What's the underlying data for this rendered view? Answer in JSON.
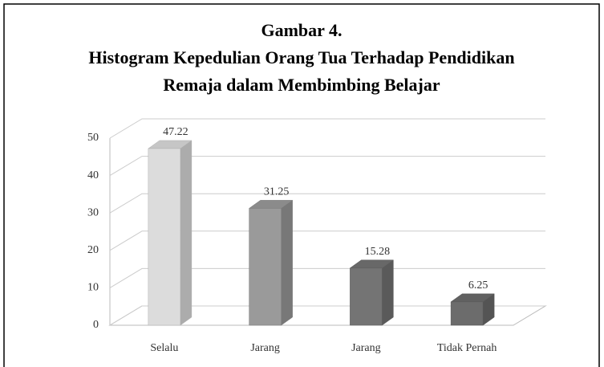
{
  "chart_data": {
    "type": "bar3d",
    "title": [
      "Gambar 4.",
      "Histogram Kepedulian Orang Tua Terhadap Pendidikan",
      "Remaja dalam Membimbing Belajar"
    ],
    "categories": [
      "Selalu",
      "Jarang",
      "Jarang",
      "Tidak Pernah"
    ],
    "values": [
      47.22,
      31.25,
      15.28,
      6.25
    ],
    "colors": [
      "#dcdcdc",
      "#9a9a9a",
      "#747474",
      "#6c6c6c"
    ],
    "ylim": [
      0,
      50
    ],
    "yticks": [
      0,
      10,
      20,
      30,
      40,
      50
    ],
    "grid": true
  }
}
